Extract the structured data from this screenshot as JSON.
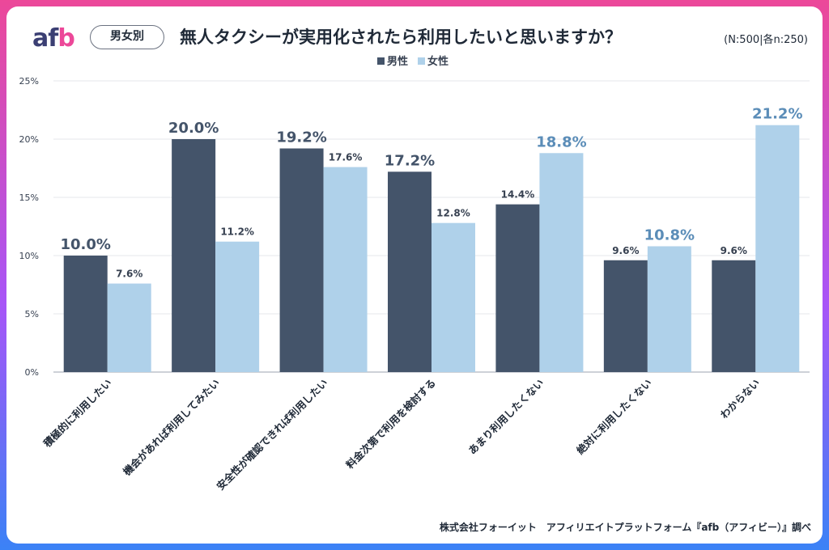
{
  "header": {
    "logo": {
      "a": "a",
      "f": "f",
      "b": "b"
    },
    "tag": "男女別",
    "title": "無人タクシーが実用化されたら利用したいと思いますか？",
    "sample": "(N:500|各n:250)"
  },
  "footer": "株式会社フォーイット　アフィリエイトプラットフォーム『afb（アフィビー）』調べ",
  "colors": {
    "male": "#44546a",
    "female": "#afd1ea",
    "highlight": "#5b8db8",
    "text": "#374151"
  },
  "chart_data": {
    "type": "bar",
    "title": "無人タクシーが実用化されたら利用したいと思いますか？",
    "categories": [
      "積極的に利用したい",
      "機会があれば利用してみたい",
      "安全性が確認できれば利用したい",
      "料金次第で利用を検討する",
      "あまり利用したくない",
      "絶対に利用したくない",
      "わからない"
    ],
    "series": [
      {
        "name": "男性",
        "values": [
          10.0,
          20.0,
          19.2,
          17.2,
          14.4,
          9.6,
          9.6
        ],
        "highlight": [
          true,
          true,
          true,
          true,
          false,
          false,
          false
        ]
      },
      {
        "name": "女性",
        "values": [
          7.6,
          11.2,
          17.6,
          12.8,
          18.8,
          10.8,
          21.2
        ],
        "highlight": [
          false,
          false,
          false,
          false,
          true,
          true,
          true
        ]
      }
    ],
    "ylim": [
      0,
      25
    ],
    "yticks": [
      0,
      5,
      10,
      15,
      20,
      25
    ],
    "ytick_labels": [
      "0%",
      "5%",
      "10%",
      "15%",
      "20%",
      "25%"
    ],
    "data_labels": [
      [
        "10.0%",
        "20.0%",
        "19.2%",
        "17.2%",
        "14.4%",
        "9.6%",
        "9.6%"
      ],
      [
        "7.6%",
        "11.2%",
        "17.6%",
        "12.8%",
        "18.8%",
        "10.8%",
        "21.2%"
      ]
    ],
    "legend": [
      "男性",
      "女性"
    ],
    "legend_position": "top-center",
    "grid": true
  }
}
